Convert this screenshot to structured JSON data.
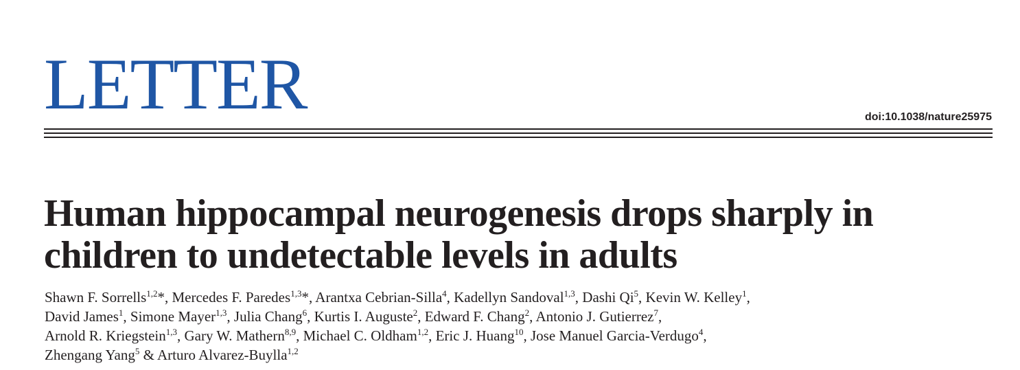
{
  "header": {
    "section_label": "LETTER",
    "doi": "doi:10.1038/nature25975"
  },
  "article": {
    "title_lines": [
      "Human hippocampal neurogenesis drops sharply in",
      "children to undetectable levels in adults"
    ],
    "author_lines": [
      [
        {
          "name": "Shawn F. Sorrells",
          "sup": "1,2",
          "after": "*, "
        },
        {
          "name": "Mercedes F. Paredes",
          "sup": "1,3",
          "after": "*, "
        },
        {
          "name": "Arantxa Cebrian-Silla",
          "sup": "4",
          "after": ", "
        },
        {
          "name": "Kadellyn Sandoval",
          "sup": "1,3",
          "after": ", "
        },
        {
          "name": "Dashi Qi",
          "sup": "5",
          "after": ", "
        },
        {
          "name": "Kevin W. Kelley",
          "sup": "1",
          "after": ","
        }
      ],
      [
        {
          "name": "David James",
          "sup": "1",
          "after": ", "
        },
        {
          "name": "Simone Mayer",
          "sup": "1,3",
          "after": ", "
        },
        {
          "name": "Julia Chang",
          "sup": "6",
          "after": ", "
        },
        {
          "name": "Kurtis I. Auguste",
          "sup": "2",
          "after": ", "
        },
        {
          "name": "Edward F. Chang",
          "sup": "2",
          "after": ", "
        },
        {
          "name": "Antonio J. Gutierrez",
          "sup": "7",
          "after": ","
        }
      ],
      [
        {
          "name": "Arnold R. Kriegstein",
          "sup": "1,3",
          "after": ", "
        },
        {
          "name": "Gary W. Mathern",
          "sup": "8,9",
          "after": ", "
        },
        {
          "name": "Michael C. Oldham",
          "sup": "1,2",
          "after": ", "
        },
        {
          "name": "Eric J. Huang",
          "sup": "10",
          "after": ", "
        },
        {
          "name": "Jose Manuel Garcia-Verdugo",
          "sup": "4",
          "after": ","
        }
      ],
      [
        {
          "name": "Zhengang Yang",
          "sup": "5",
          "after": " & "
        },
        {
          "name": "Arturo Alvarez-Buylla",
          "sup": "1,2",
          "after": ""
        }
      ]
    ]
  }
}
